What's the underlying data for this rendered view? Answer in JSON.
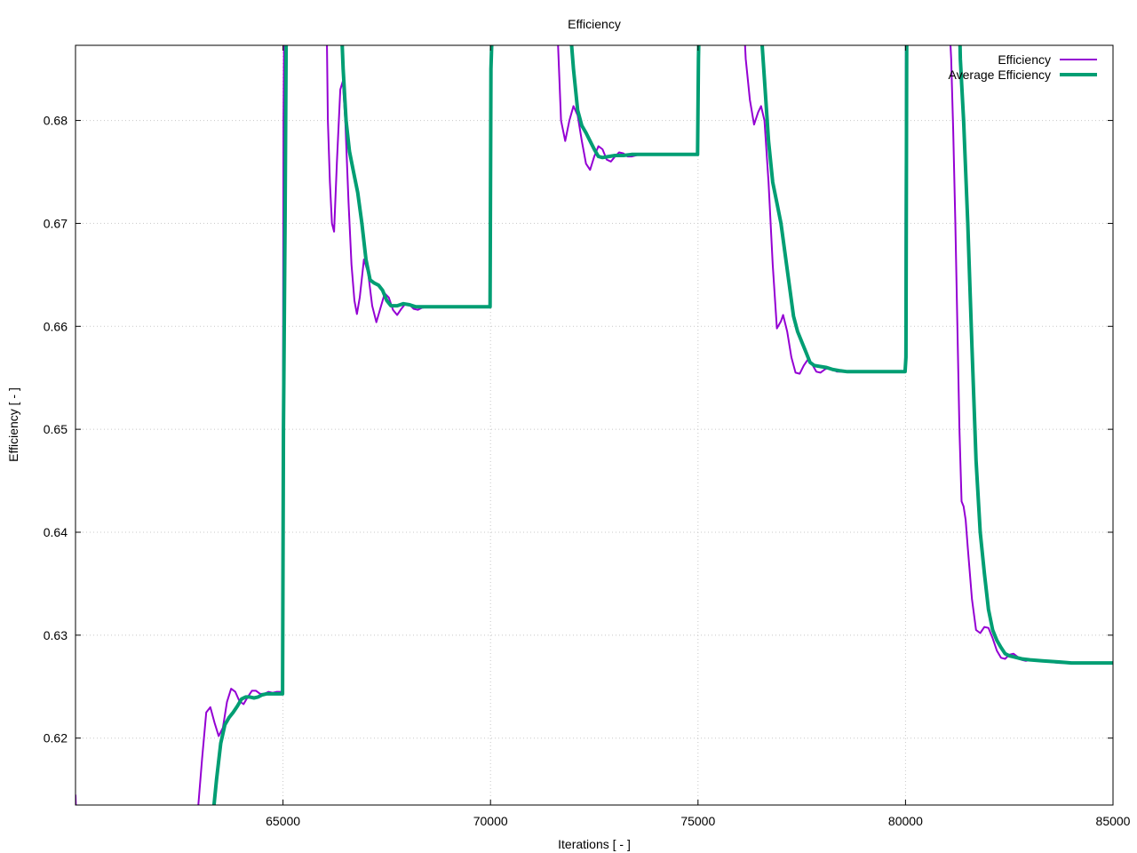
{
  "chart_data": {
    "type": "line",
    "title": "Efficiency",
    "xlabel": "Iterations [ - ]",
    "ylabel": "Efficiency [ - ]",
    "xlim": [
      60000,
      85000
    ],
    "ylim": [
      0.6135,
      0.6873
    ],
    "x_ticks": [
      65000,
      70000,
      75000,
      80000,
      85000
    ],
    "x_tick_labels": [
      "65000",
      "70000",
      "75000",
      "80000",
      "85000"
    ],
    "y_ticks": [
      0.62,
      0.63,
      0.64,
      0.65,
      0.66,
      0.67,
      0.68
    ],
    "y_tick_labels": [
      "0.62",
      "0.63",
      "0.64",
      "0.65",
      "0.66",
      "0.67",
      "0.68"
    ],
    "grid": true,
    "legend_position": "top-right",
    "series": [
      {
        "name": "Efficiency",
        "color": "#9400d3",
        "points": [
          [
            60000,
            0.6145
          ],
          [
            60020,
            0.612
          ],
          [
            62800,
            0.612
          ],
          [
            62950,
            0.613
          ],
          [
            63050,
            0.618
          ],
          [
            63150,
            0.6225
          ],
          [
            63250,
            0.623
          ],
          [
            63350,
            0.6215
          ],
          [
            63450,
            0.6202
          ],
          [
            63550,
            0.621
          ],
          [
            63650,
            0.6235
          ],
          [
            63750,
            0.6248
          ],
          [
            63850,
            0.6245
          ],
          [
            63950,
            0.6236
          ],
          [
            64050,
            0.6233
          ],
          [
            64150,
            0.624
          ],
          [
            64250,
            0.6246
          ],
          [
            64350,
            0.6246
          ],
          [
            64450,
            0.6243
          ],
          [
            64550,
            0.6243
          ],
          [
            64650,
            0.6245
          ],
          [
            64750,
            0.6244
          ],
          [
            64850,
            0.6245
          ],
          [
            64990,
            0.6245
          ],
          [
            65010,
            0.68
          ],
          [
            65030,
            0.69
          ],
          [
            66050,
            0.69
          ],
          [
            66080,
            0.68
          ],
          [
            66130,
            0.674
          ],
          [
            66180,
            0.67
          ],
          [
            66230,
            0.6692
          ],
          [
            66300,
            0.676
          ],
          [
            66380,
            0.683
          ],
          [
            66440,
            0.6838
          ],
          [
            66500,
            0.68
          ],
          [
            66580,
            0.672
          ],
          [
            66650,
            0.666
          ],
          [
            66720,
            0.6625
          ],
          [
            66780,
            0.6612
          ],
          [
            66850,
            0.6628
          ],
          [
            66950,
            0.6665
          ],
          [
            67050,
            0.6652
          ],
          [
            67150,
            0.662
          ],
          [
            67250,
            0.6604
          ],
          [
            67350,
            0.6618
          ],
          [
            67450,
            0.6632
          ],
          [
            67550,
            0.6628
          ],
          [
            67650,
            0.6616
          ],
          [
            67750,
            0.6611
          ],
          [
            67850,
            0.6617
          ],
          [
            67950,
            0.6622
          ],
          [
            68050,
            0.6621
          ],
          [
            68150,
            0.6617
          ],
          [
            68250,
            0.6616
          ],
          [
            68350,
            0.6618
          ],
          [
            68500,
            0.6619
          ],
          [
            69990,
            0.6619
          ],
          [
            70010,
            0.69
          ],
          [
            71600,
            0.69
          ],
          [
            71700,
            0.68
          ],
          [
            71800,
            0.678
          ],
          [
            71900,
            0.68
          ],
          [
            72000,
            0.6814
          ],
          [
            72100,
            0.6805
          ],
          [
            72200,
            0.678
          ],
          [
            72300,
            0.6758
          ],
          [
            72400,
            0.6752
          ],
          [
            72500,
            0.6765
          ],
          [
            72600,
            0.6775
          ],
          [
            72700,
            0.6772
          ],
          [
            72800,
            0.6762
          ],
          [
            72900,
            0.676
          ],
          [
            73000,
            0.6765
          ],
          [
            73100,
            0.6769
          ],
          [
            73200,
            0.6768
          ],
          [
            73300,
            0.6765
          ],
          [
            73400,
            0.6765
          ],
          [
            73600,
            0.6767
          ],
          [
            74990,
            0.6767
          ],
          [
            75010,
            0.69
          ],
          [
            76100,
            0.69
          ],
          [
            76150,
            0.686
          ],
          [
            76250,
            0.682
          ],
          [
            76350,
            0.6796
          ],
          [
            76450,
            0.6808
          ],
          [
            76520,
            0.6814
          ],
          [
            76600,
            0.68
          ],
          [
            76700,
            0.674
          ],
          [
            76800,
            0.666
          ],
          [
            76900,
            0.6598
          ],
          [
            77000,
            0.6605
          ],
          [
            77050,
            0.6611
          ],
          [
            77150,
            0.6595
          ],
          [
            77250,
            0.657
          ],
          [
            77350,
            0.6555
          ],
          [
            77450,
            0.6554
          ],
          [
            77550,
            0.6562
          ],
          [
            77650,
            0.6568
          ],
          [
            77750,
            0.6563
          ],
          [
            77850,
            0.6556
          ],
          [
            77950,
            0.6555
          ],
          [
            78050,
            0.6558
          ],
          [
            78150,
            0.656
          ],
          [
            78250,
            0.6558
          ],
          [
            78350,
            0.6556
          ],
          [
            78500,
            0.6556
          ],
          [
            79990,
            0.6556
          ],
          [
            80010,
            0.69
          ],
          [
            81050,
            0.69
          ],
          [
            81100,
            0.686
          ],
          [
            81150,
            0.679
          ],
          [
            81200,
            0.67
          ],
          [
            81250,
            0.66
          ],
          [
            81300,
            0.65
          ],
          [
            81350,
            0.643
          ],
          [
            81400,
            0.6425
          ],
          [
            81450,
            0.6412
          ],
          [
            81500,
            0.6385
          ],
          [
            81600,
            0.6335
          ],
          [
            81700,
            0.6305
          ],
          [
            81800,
            0.6302
          ],
          [
            81900,
            0.6308
          ],
          [
            82000,
            0.6307
          ],
          [
            82100,
            0.6297
          ],
          [
            82200,
            0.6285
          ],
          [
            82300,
            0.6278
          ],
          [
            82400,
            0.6277
          ],
          [
            82500,
            0.6281
          ],
          [
            82600,
            0.6282
          ],
          [
            82700,
            0.6279
          ],
          [
            82800,
            0.6276
          ],
          [
            82900,
            0.6275
          ],
          [
            83000,
            0.6276
          ],
          [
            83200,
            0.6275
          ],
          [
            83500,
            0.6274
          ],
          [
            83700,
            0.6273
          ],
          [
            84000,
            0.6273
          ],
          [
            85000,
            0.6273
          ]
        ]
      },
      {
        "name": "Average Efficiency",
        "color": "#009e73",
        "points": [
          [
            63300,
            0.612
          ],
          [
            63400,
            0.616
          ],
          [
            63500,
            0.6195
          ],
          [
            63600,
            0.6213
          ],
          [
            63700,
            0.622
          ],
          [
            63800,
            0.6225
          ],
          [
            63900,
            0.6231
          ],
          [
            64000,
            0.6238
          ],
          [
            64100,
            0.624
          ],
          [
            64200,
            0.624
          ],
          [
            64300,
            0.6239
          ],
          [
            64400,
            0.624
          ],
          [
            64500,
            0.6242
          ],
          [
            64600,
            0.6243
          ],
          [
            64800,
            0.6243
          ],
          [
            64990,
            0.6243
          ],
          [
            65010,
            0.65
          ],
          [
            65050,
            0.67
          ],
          [
            65080,
            0.69
          ],
          [
            66400,
            0.69
          ],
          [
            66450,
            0.685
          ],
          [
            66520,
            0.68
          ],
          [
            66600,
            0.677
          ],
          [
            66700,
            0.675
          ],
          [
            66800,
            0.673
          ],
          [
            66900,
            0.67
          ],
          [
            67000,
            0.6665
          ],
          [
            67100,
            0.6645
          ],
          [
            67200,
            0.6642
          ],
          [
            67300,
            0.664
          ],
          [
            67400,
            0.6635
          ],
          [
            67500,
            0.6625
          ],
          [
            67600,
            0.662
          ],
          [
            67750,
            0.662
          ],
          [
            67900,
            0.6622
          ],
          [
            68050,
            0.6621
          ],
          [
            68200,
            0.6619
          ],
          [
            68400,
            0.6619
          ],
          [
            68700,
            0.6619
          ],
          [
            69990,
            0.6619
          ],
          [
            70010,
            0.685
          ],
          [
            70050,
            0.69
          ],
          [
            71900,
            0.69
          ],
          [
            72000,
            0.685
          ],
          [
            72100,
            0.681
          ],
          [
            72200,
            0.6795
          ],
          [
            72300,
            0.6788
          ],
          [
            72400,
            0.678
          ],
          [
            72500,
            0.6772
          ],
          [
            72600,
            0.6765
          ],
          [
            72700,
            0.6764
          ],
          [
            72850,
            0.6765
          ],
          [
            73000,
            0.6766
          ],
          [
            73200,
            0.6766
          ],
          [
            73400,
            0.6767
          ],
          [
            73700,
            0.6767
          ],
          [
            74990,
            0.6767
          ],
          [
            75010,
            0.686
          ],
          [
            75030,
            0.69
          ],
          [
            76500,
            0.69
          ],
          [
            76600,
            0.684
          ],
          [
            76700,
            0.678
          ],
          [
            76800,
            0.674
          ],
          [
            76900,
            0.672
          ],
          [
            77000,
            0.67
          ],
          [
            77100,
            0.667
          ],
          [
            77200,
            0.664
          ],
          [
            77300,
            0.661
          ],
          [
            77400,
            0.6595
          ],
          [
            77500,
            0.6585
          ],
          [
            77600,
            0.6575
          ],
          [
            77700,
            0.6565
          ],
          [
            77800,
            0.6562
          ],
          [
            77950,
            0.6561
          ],
          [
            78100,
            0.656
          ],
          [
            78250,
            0.6558
          ],
          [
            78400,
            0.6557
          ],
          [
            78600,
            0.6556
          ],
          [
            79990,
            0.6556
          ],
          [
            80010,
            0.657
          ],
          [
            80030,
            0.69
          ],
          [
            81300,
            0.69
          ],
          [
            81320,
            0.686
          ],
          [
            81400,
            0.68
          ],
          [
            81500,
            0.67
          ],
          [
            81600,
            0.658
          ],
          [
            81700,
            0.647
          ],
          [
            81800,
            0.64
          ],
          [
            81900,
            0.636
          ],
          [
            82000,
            0.6325
          ],
          [
            82100,
            0.6305
          ],
          [
            82200,
            0.6295
          ],
          [
            82300,
            0.6288
          ],
          [
            82400,
            0.6282
          ],
          [
            82500,
            0.628
          ],
          [
            82600,
            0.6279
          ],
          [
            82800,
            0.6277
          ],
          [
            83000,
            0.6276
          ],
          [
            83300,
            0.6275
          ],
          [
            83700,
            0.6274
          ],
          [
            84000,
            0.6273
          ],
          [
            85000,
            0.6273
          ]
        ]
      }
    ]
  }
}
